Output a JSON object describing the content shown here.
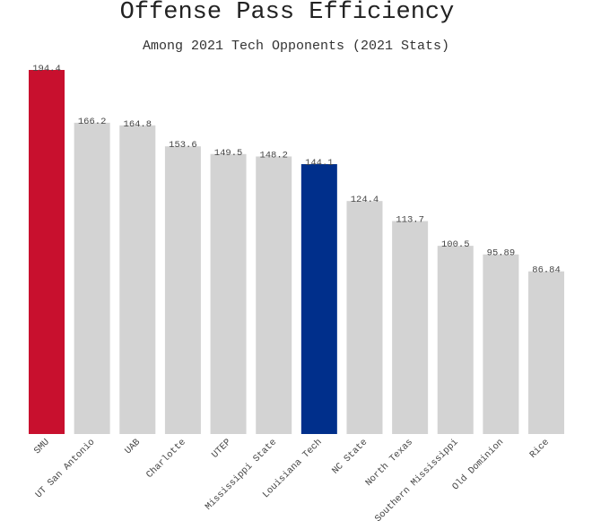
{
  "chart_data": {
    "type": "bar",
    "title": "Offense Pass Efficiency",
    "subtitle": "Among 2021 Tech Opponents (2021 Stats)",
    "categories": [
      "SMU",
      "UT San Antonio",
      "UAB",
      "Charlotte",
      "UTEP",
      "Mississippi State",
      "Louisiana Tech",
      "NC State",
      "North Texas",
      "Southern Mississippi",
      "Old Dominion",
      "Rice"
    ],
    "values": [
      194.4,
      166.2,
      164.8,
      153.6,
      149.5,
      148.2,
      144.1,
      124.4,
      113.7,
      100.5,
      95.89,
      86.84
    ],
    "value_labels": [
      "194.4",
      "166.2",
      "164.8",
      "153.6",
      "149.5",
      "148.2",
      "144.1",
      "124.4",
      "113.7",
      "100.5",
      "95.89",
      "86.84"
    ],
    "colors": [
      "#c8102e",
      "#d3d3d3",
      "#d3d3d3",
      "#d3d3d3",
      "#d3d3d3",
      "#d3d3d3",
      "#002f8b",
      "#d3d3d3",
      "#d3d3d3",
      "#d3d3d3",
      "#d3d3d3",
      "#d3d3d3"
    ],
    "ylim": [
      0,
      194.4
    ],
    "grid": false,
    "xlabel": "",
    "ylabel": ""
  }
}
